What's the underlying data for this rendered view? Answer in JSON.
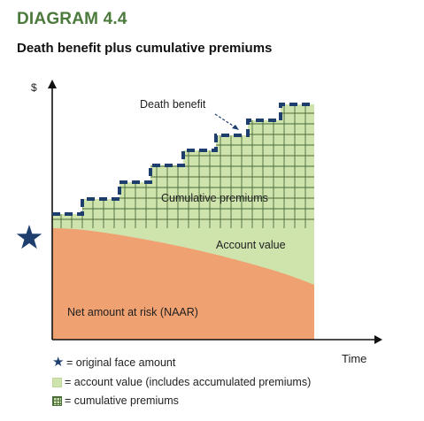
{
  "header": {
    "diagram_number": "DIAGRAM 4.4",
    "title": "Death benefit plus cumulative premiums"
  },
  "axes": {
    "y_label": "$",
    "x_label": "Time"
  },
  "regions": {
    "death_benefit": "Death benefit",
    "cumulative_premiums": "Cumulative premiums",
    "account_value": "Account value",
    "naar": "Net amount at risk (NAAR)"
  },
  "legend": [
    {
      "marker": "star-icon",
      "text": "= original face amount"
    },
    {
      "marker": "green-swatch",
      "text": "= account value (includes accumulated premiums)"
    },
    {
      "marker": "grid-swatch",
      "text": "= cumulative premiums"
    }
  ],
  "colors": {
    "heading_green": "#4b7a3c",
    "account_value_fill": "#cfe3ad",
    "naar_fill": "#efa171",
    "death_benefit_line": "#1e3f6e",
    "star": "#1e3f6e",
    "grid_line": "#4a6b3a"
  }
}
